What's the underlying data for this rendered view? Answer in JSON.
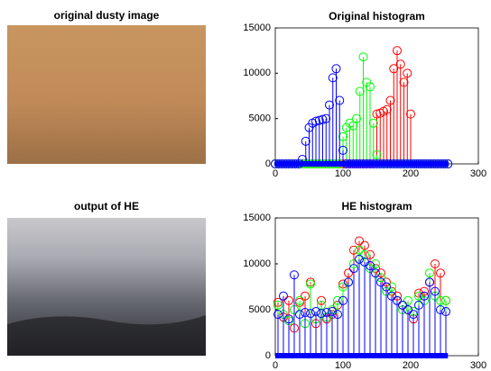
{
  "images": [
    {
      "title": "original dusty image"
    },
    {
      "title": "output of HE"
    }
  ],
  "chart_data": [
    {
      "type": "stem",
      "title": "Original histogram",
      "x": [
        0,
        5,
        10,
        15,
        20,
        25,
        30,
        35,
        40,
        45,
        50,
        55,
        60,
        65,
        70,
        75,
        80,
        85,
        90,
        95,
        100,
        105,
        110,
        115,
        120,
        125,
        130,
        135,
        140,
        145,
        150,
        155,
        160,
        165,
        170,
        175,
        180,
        185,
        190,
        195,
        200,
        205,
        210,
        215,
        220,
        225,
        230,
        235,
        240,
        245,
        250,
        255
      ],
      "series": [
        {
          "color": "#ff0000",
          "values": [
            0,
            0,
            0,
            0,
            0,
            0,
            0,
            0,
            0,
            0,
            0,
            0,
            0,
            0,
            0,
            0,
            0,
            0,
            0,
            0,
            0,
            0,
            0,
            0,
            0,
            0,
            0,
            0,
            0,
            0,
            5500,
            5600,
            5800,
            6000,
            7000,
            10500,
            12500,
            11000,
            9000,
            10000,
            5500,
            0,
            0,
            0,
            0,
            0,
            0,
            0,
            0,
            0,
            0,
            0
          ]
        },
        {
          "color": "#00ff00",
          "values": [
            0,
            0,
            0,
            0,
            0,
            0,
            0,
            0,
            0,
            0,
            0,
            0,
            0,
            0,
            0,
            0,
            0,
            0,
            0,
            0,
            3000,
            4000,
            4500,
            4200,
            5000,
            8000,
            11800,
            9000,
            8500,
            4500,
            1000,
            0,
            0,
            0,
            0,
            0,
            0,
            0,
            0,
            0,
            0,
            0,
            0,
            0,
            0,
            0,
            0,
            0,
            0,
            0,
            0,
            0
          ]
        },
        {
          "color": "#0000ff",
          "values": [
            0,
            0,
            0,
            0,
            0,
            0,
            0,
            0,
            500,
            2500,
            4000,
            4500,
            4700,
            4800,
            4900,
            5000,
            6500,
            9500,
            10500,
            7000,
            1500,
            0,
            0,
            0,
            0,
            0,
            0,
            0,
            0,
            0,
            0,
            0,
            0,
            0,
            0,
            0,
            0,
            0,
            0,
            0,
            0,
            0,
            0,
            0,
            0,
            0,
            0,
            0,
            0,
            0,
            0,
            0
          ]
        }
      ],
      "xlim": [
        0,
        300
      ],
      "xticks": [
        0,
        100,
        200,
        300
      ],
      "ylim": [
        0,
        15000
      ],
      "yticks": [
        0,
        5000,
        10000,
        15000
      ]
    },
    {
      "type": "stem",
      "title": "HE histogram",
      "x": [
        4,
        12,
        20,
        28,
        36,
        44,
        52,
        60,
        68,
        76,
        84,
        92,
        100,
        108,
        116,
        124,
        132,
        140,
        148,
        156,
        164,
        172,
        180,
        188,
        196,
        204,
        212,
        220,
        228,
        236,
        244,
        252
      ],
      "series": [
        {
          "color": "#ff0000",
          "values": [
            5800,
            4200,
            6000,
            3000,
            5800,
            6500,
            8000,
            3500,
            6000,
            4000,
            4500,
            5500,
            7800,
            9000,
            11500,
            12500,
            12000,
            11000,
            9500,
            9000,
            8000,
            7000,
            6500,
            5500,
            5000,
            4000,
            6800,
            7000,
            8000,
            10000,
            9000,
            6000
          ]
        },
        {
          "color": "#00ff00",
          "values": [
            5500,
            4500,
            3800,
            5000,
            6000,
            3500,
            7800,
            4000,
            5500,
            4200,
            5000,
            6000,
            7500,
            8000,
            10000,
            11500,
            11000,
            9500,
            10000,
            8500,
            7000,
            7500,
            6000,
            5000,
            6000,
            4800,
            6500,
            6000,
            9000,
            6500,
            6000,
            6000
          ]
        },
        {
          "color": "#0000ff",
          "values": [
            4500,
            6500,
            4000,
            8800,
            4500,
            4700,
            4600,
            4800,
            4600,
            4700,
            4800,
            4500,
            6000,
            8000,
            9500,
            10500,
            10200,
            9800,
            9000,
            8000,
            7500,
            6500,
            6000,
            5500,
            5000,
            4500,
            5500,
            6500,
            8000,
            7000,
            5000,
            4800
          ]
        }
      ],
      "xlim": [
        0,
        300
      ],
      "xticks": [
        0,
        100,
        200,
        300
      ],
      "ylim": [
        0,
        15000
      ],
      "yticks": [
        0,
        5000,
        10000,
        15000
      ]
    }
  ]
}
